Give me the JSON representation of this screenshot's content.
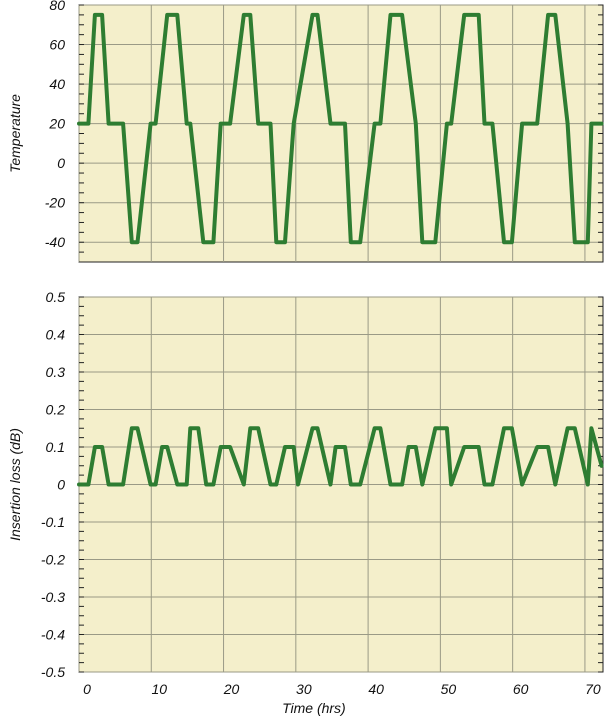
{
  "chart_data": [
    {
      "type": "line",
      "title": "",
      "xlabel": "",
      "ylabel": "Temperature",
      "xlim": [
        0,
        72.5
      ],
      "ylim": [
        -50,
        80
      ],
      "yticks": [
        80,
        60,
        40,
        20,
        0,
        -20,
        -40
      ],
      "ytick_labels": [
        "80",
        "60",
        "40",
        "20",
        "0",
        "-20",
        "-40"
      ],
      "xticks": [
        0,
        10,
        20,
        30,
        40,
        50,
        60,
        70
      ],
      "grid": true,
      "legend": "none",
      "series": [
        {
          "color": "#2e7d32",
          "x": [
            0,
            1.3,
            2.2,
            3.2,
            4.1,
            6.1,
            7.3,
            8.1,
            9.9,
            10.3,
            10.6,
            12.2,
            13.6,
            14.9,
            15.4,
            17.2,
            18.6,
            19.6,
            20.9,
            22.8,
            23.7,
            24.8,
            26.5,
            27.3,
            28.5,
            29.7,
            32.3,
            33.0,
            34.8,
            36.8,
            37.6,
            38.9,
            40.9,
            41.7,
            43.1,
            44.7,
            46.6,
            47.5,
            49.3,
            50.9,
            51.5,
            53.3,
            55.3,
            56.1,
            57.2,
            58.8,
            59.9,
            61.3,
            63.4,
            64.9,
            65.9,
            67.6,
            68.6,
            70.4,
            70.9,
            72.3
          ],
          "y": [
            20,
            20,
            75,
            75,
            20,
            20,
            -40,
            -40,
            20,
            20,
            20,
            75,
            75,
            20,
            20,
            -40,
            -40,
            20,
            20,
            75,
            75,
            20,
            20,
            -40,
            -40,
            20,
            75,
            75,
            20,
            20,
            -40,
            -40,
            20,
            20,
            75,
            75,
            20,
            -40,
            -40,
            20,
            20,
            75,
            75,
            20,
            20,
            -40,
            -40,
            20,
            20,
            75,
            75,
            20,
            -40,
            -40,
            20,
            20
          ]
        }
      ]
    },
    {
      "type": "line",
      "title": "",
      "xlabel": "Time (hrs)",
      "ylabel": "Insertion loss (dB)",
      "xlim": [
        0,
        72.5
      ],
      "ylim": [
        -0.5,
        0.5
      ],
      "yticks": [
        0.5,
        0.4,
        0.3,
        0.2,
        0.1,
        0,
        -0.1,
        -0.2,
        -0.3,
        -0.4,
        -0.5
      ],
      "ytick_labels": [
        "0.5",
        "0.4",
        "0.3",
        "0.2",
        "0.1",
        "0",
        "-0.1",
        "-0.2",
        "-0.3",
        "-0.4",
        "-0.5"
      ],
      "xticks": [
        0,
        10,
        20,
        30,
        40,
        50,
        60,
        70
      ],
      "xtick_labels": [
        "0",
        "10",
        "20",
        "30",
        "40",
        "50",
        "60",
        "70"
      ],
      "grid": true,
      "legend": "none",
      "series": [
        {
          "color": "#2e7d32",
          "x": [
            0,
            1.3,
            2.2,
            3.2,
            4.1,
            6.1,
            7.3,
            8.1,
            9.9,
            10.6,
            11.5,
            12.2,
            13.6,
            14.9,
            15.4,
            16.5,
            17.6,
            18.6,
            19.6,
            20.9,
            22.8,
            23.7,
            24.8,
            26.5,
            27.3,
            28.5,
            29.7,
            30.3,
            32.3,
            33.0,
            34.8,
            35.5,
            36.8,
            37.6,
            38.9,
            40.9,
            41.7,
            43.1,
            44.7,
            45.6,
            46.6,
            47.5,
            49.3,
            50.9,
            51.5,
            53.3,
            55.3,
            56.1,
            57.2,
            58.8,
            59.9,
            61.3,
            63.4,
            64.9,
            65.9,
            67.6,
            68.6,
            70.4,
            70.9,
            72.3
          ],
          "y": [
            0,
            0,
            0.1,
            0.1,
            0,
            0,
            0.15,
            0.15,
            0,
            0,
            0.1,
            0.1,
            0,
            0,
            0.15,
            0.15,
            0,
            0,
            0.1,
            0.1,
            0,
            0.15,
            0.15,
            0,
            0,
            0.1,
            0.1,
            0,
            0.15,
            0.15,
            0,
            0.1,
            0.1,
            0,
            0,
            0.15,
            0.15,
            0,
            0,
            0.1,
            0.1,
            0,
            0.15,
            0.15,
            0,
            0.1,
            0.1,
            0,
            0,
            0.15,
            0.15,
            0,
            0.1,
            0.1,
            0,
            0.15,
            0.15,
            0,
            0.15,
            0.05
          ]
        }
      ]
    }
  ]
}
